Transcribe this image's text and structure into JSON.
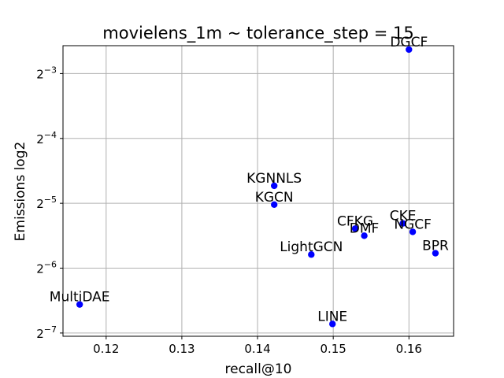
{
  "chart_data": {
    "type": "scatter",
    "title": "movielens_1m ~ tolerance_step = 15",
    "xlabel": "recall@10",
    "ylabel": "Emissions log2",
    "xlim": [
      0.1143,
      0.1659
    ],
    "ylim": [
      -7.05,
      -2.57
    ],
    "y_scale": "log2",
    "grid": true,
    "marker_color": "#0000ff",
    "x_ticks": [
      {
        "value": 0.12,
        "label": "0.12"
      },
      {
        "value": 0.13,
        "label": "0.13"
      },
      {
        "value": 0.14,
        "label": "0.14"
      },
      {
        "value": 0.15,
        "label": "0.15"
      },
      {
        "value": 0.16,
        "label": "0.16"
      }
    ],
    "y_ticks": [
      {
        "value": -7,
        "base": "2",
        "exp": "−7"
      },
      {
        "value": -6,
        "base": "2",
        "exp": "−6"
      },
      {
        "value": -5,
        "base": "2",
        "exp": "−5"
      },
      {
        "value": -4,
        "base": "2",
        "exp": "−4"
      },
      {
        "value": -3,
        "base": "2",
        "exp": "−3"
      }
    ],
    "points": [
      {
        "name": "DGCF",
        "x": 0.16,
        "y": -2.63
      },
      {
        "name": "KGNNLS",
        "x": 0.1422,
        "y": -4.73
      },
      {
        "name": "KGCN",
        "x": 0.1422,
        "y": -5.02
      },
      {
        "name": "CFKG",
        "x": 0.1529,
        "y": -5.39
      },
      {
        "name": "DMF",
        "x": 0.1541,
        "y": -5.5
      },
      {
        "name": "CKE",
        "x": 0.1592,
        "y": -5.31
      },
      {
        "name": "NGCF",
        "x": 0.1605,
        "y": -5.44
      },
      {
        "name": "BPR",
        "x": 0.1635,
        "y": -5.77
      },
      {
        "name": "LightGCN",
        "x": 0.1471,
        "y": -5.79
      },
      {
        "name": "MultiDAE",
        "x": 0.1165,
        "y": -6.56
      },
      {
        "name": "LINE",
        "x": 0.1499,
        "y": -6.86
      }
    ]
  }
}
